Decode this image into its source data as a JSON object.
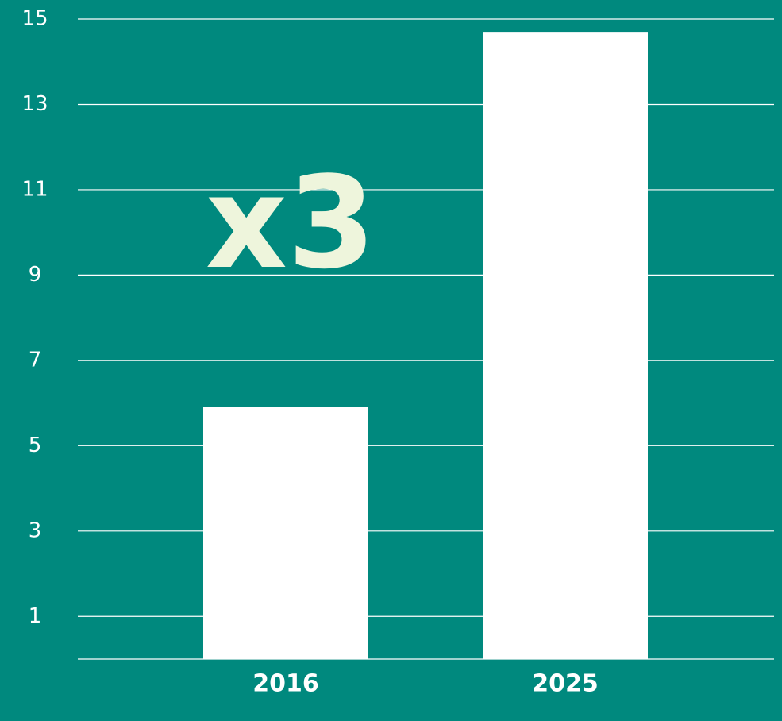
{
  "chart_data": {
    "type": "bar",
    "categories": [
      "2016",
      "2025"
    ],
    "values": [
      5.9,
      14.7
    ],
    "color": "#ffffff",
    "ylim": [
      0,
      15
    ],
    "yticks": [
      1,
      3,
      5,
      7,
      9,
      11,
      13,
      15
    ],
    "grid": true,
    "annotation": "x3"
  }
}
